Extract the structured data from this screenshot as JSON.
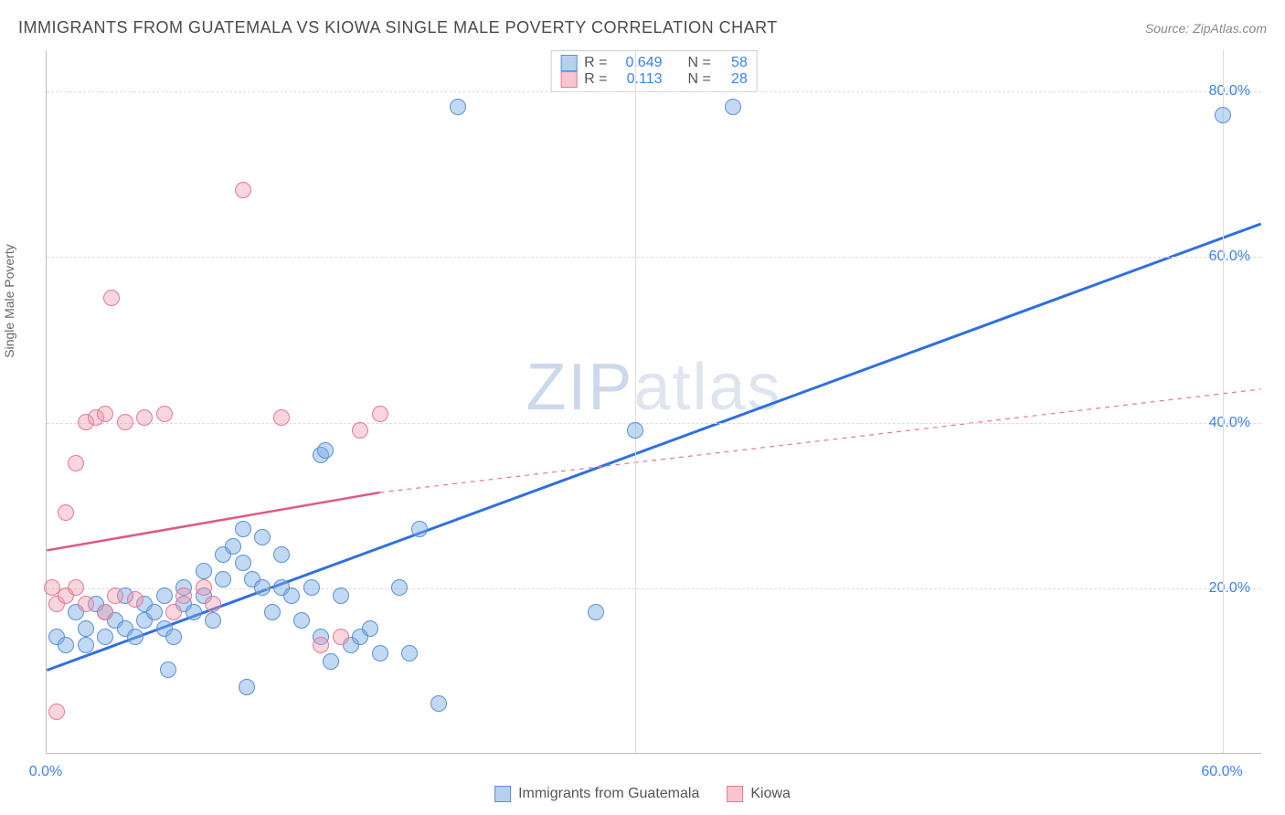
{
  "title": "IMMIGRANTS FROM GUATEMALA VS KIOWA SINGLE MALE POVERTY CORRELATION CHART",
  "source": "Source: ZipAtlas.com",
  "ylabel": "Single Male Poverty",
  "watermark_a": "ZIP",
  "watermark_b": "atlas",
  "chart": {
    "type": "scatter",
    "xlim": [
      0,
      62
    ],
    "ylim": [
      0,
      85
    ],
    "xtick_labels": [
      "0.0%",
      "60.0%"
    ],
    "xtick_vals": [
      0,
      60
    ],
    "ytick_labels": [
      "20.0%",
      "40.0%",
      "60.0%",
      "80.0%"
    ],
    "ytick_vals": [
      20,
      40,
      60,
      80
    ],
    "background_color": "#ffffff",
    "grid_color": "#dddddd",
    "marker_radius": 9,
    "series": [
      {
        "name": "Immigrants from Guatemala",
        "color_fill": "rgba(120,170,230,0.45)",
        "color_stroke": "#5b8fd6",
        "class": "pt-blue",
        "trend": {
          "x1": 0,
          "y1": 10,
          "x2": 62,
          "y2": 64,
          "stroke": "#2f6fe0",
          "width": 3,
          "dash": ""
        },
        "R_label": "R =",
        "R": "0.649",
        "N_label": "N =",
        "N": "58",
        "points": [
          [
            0.5,
            14
          ],
          [
            1,
            13
          ],
          [
            1.5,
            17
          ],
          [
            2,
            15
          ],
          [
            2,
            13
          ],
          [
            2.5,
            18
          ],
          [
            3,
            14
          ],
          [
            3,
            17
          ],
          [
            3.5,
            16
          ],
          [
            4,
            15
          ],
          [
            4,
            19
          ],
          [
            4.5,
            14
          ],
          [
            5,
            18
          ],
          [
            5,
            16
          ],
          [
            5.5,
            17
          ],
          [
            6,
            15
          ],
          [
            6,
            19
          ],
          [
            6.2,
            10
          ],
          [
            6.5,
            14
          ],
          [
            7,
            18
          ],
          [
            7,
            20
          ],
          [
            7.5,
            17
          ],
          [
            8,
            22
          ],
          [
            8,
            19
          ],
          [
            8.5,
            16
          ],
          [
            9,
            24
          ],
          [
            9,
            21
          ],
          [
            9.5,
            25
          ],
          [
            10,
            23
          ],
          [
            10,
            27
          ],
          [
            10.2,
            8
          ],
          [
            10.5,
            21
          ],
          [
            11,
            26
          ],
          [
            11,
            20
          ],
          [
            11.5,
            17
          ],
          [
            12,
            24
          ],
          [
            12,
            20
          ],
          [
            12.5,
            19
          ],
          [
            13,
            16
          ],
          [
            13.5,
            20
          ],
          [
            14,
            14
          ],
          [
            14,
            36
          ],
          [
            14.2,
            36.5
          ],
          [
            14.5,
            11
          ],
          [
            15,
            19
          ],
          [
            15.5,
            13
          ],
          [
            16,
            14
          ],
          [
            16.5,
            15
          ],
          [
            17,
            12
          ],
          [
            18,
            20
          ],
          [
            18.5,
            12
          ],
          [
            19,
            27
          ],
          [
            20,
            6
          ],
          [
            21,
            78
          ],
          [
            28,
            17
          ],
          [
            30,
            39
          ],
          [
            35,
            78
          ],
          [
            60,
            77
          ]
        ]
      },
      {
        "name": "Kiowa",
        "color_fill": "rgba(240,150,170,0.4)",
        "color_stroke": "#e47a96",
        "class": "pt-pink",
        "trend": {
          "x1": 0,
          "y1": 24.5,
          "x2": 17,
          "y2": 31.5,
          "stroke": "#e05a7d",
          "width": 2.5,
          "dash": ""
        },
        "trend_ext": {
          "x1": 17,
          "y1": 31.5,
          "x2": 62,
          "y2": 44,
          "stroke": "#e07a96",
          "width": 1.2,
          "dash": "5,5"
        },
        "R_label": "R =",
        "R": "0.113",
        "N_label": "N =",
        "N": "28",
        "points": [
          [
            0.3,
            20
          ],
          [
            0.5,
            18
          ],
          [
            0.5,
            5
          ],
          [
            1,
            29
          ],
          [
            1,
            19
          ],
          [
            1.5,
            35
          ],
          [
            1.5,
            20
          ],
          [
            2,
            40
          ],
          [
            2,
            18
          ],
          [
            2.5,
            40.5
          ],
          [
            3,
            41
          ],
          [
            3,
            17
          ],
          [
            3.3,
            55
          ],
          [
            3.5,
            19
          ],
          [
            4,
            40
          ],
          [
            4.5,
            18.5
          ],
          [
            5,
            40.5
          ],
          [
            6,
            41
          ],
          [
            6.5,
            17
          ],
          [
            7,
            19
          ],
          [
            8,
            20
          ],
          [
            8.5,
            18
          ],
          [
            10,
            68
          ],
          [
            12,
            40.5
          ],
          [
            14,
            13
          ],
          [
            15,
            14
          ],
          [
            16,
            39
          ],
          [
            17,
            41
          ]
        ]
      }
    ]
  },
  "legend": {
    "items": [
      {
        "swatch": "sw-blue",
        "label": "Immigrants from Guatemala"
      },
      {
        "swatch": "sw-pink",
        "label": "Kiowa"
      }
    ]
  }
}
